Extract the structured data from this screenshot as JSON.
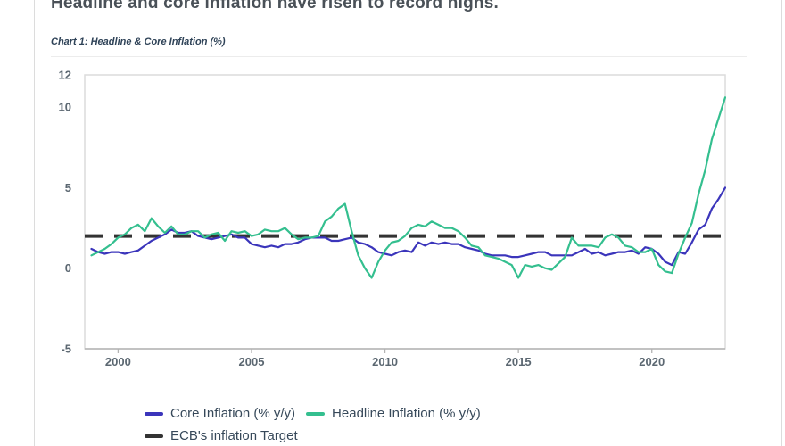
{
  "page": {
    "title": "Headline and core inflation have risen to record highs."
  },
  "chart": {
    "caption": "Chart 1: Headline & Core Inflation (%)"
  },
  "colors": {
    "core_line": "#3b35bb",
    "headline_line": "#34bf8f",
    "target_line": "#333333",
    "axis_label": "#5b6771",
    "plot_border": "#dcdcdc",
    "axis_line": "#b3b3b3"
  },
  "chart_data": {
    "type": "line",
    "title": "Chart 1: Headline & Core Inflation (%)",
    "xlabel": "",
    "ylabel": "",
    "x_start": 1999.0,
    "x_step_years": 0.25,
    "xlim": [
      1998.75,
      2022.75
    ],
    "ylim": [
      -5,
      12
    ],
    "x_ticks": [
      2000,
      2005,
      2010,
      2015,
      2020
    ],
    "y_ticks": [
      12,
      10,
      5,
      0,
      -5
    ],
    "grid": false,
    "legend_position": "bottom-left",
    "target_line": {
      "value": 2,
      "color": "#333333",
      "style": "dashed",
      "label": "ECB's inflation Target"
    },
    "series": [
      {
        "name": "Core Inflation (% y/y)",
        "color": "#3b35bb",
        "values": [
          1.2,
          1.0,
          0.9,
          1.0,
          1.0,
          0.9,
          1.0,
          1.1,
          1.4,
          1.7,
          1.9,
          2.1,
          2.4,
          2.2,
          2.2,
          2.3,
          2.0,
          1.9,
          1.8,
          1.9,
          2.0,
          2.1,
          1.9,
          1.9,
          1.5,
          1.4,
          1.3,
          1.4,
          1.3,
          1.5,
          1.5,
          1.6,
          1.8,
          1.9,
          1.9,
          1.9,
          1.7,
          1.7,
          1.8,
          1.9,
          1.6,
          1.5,
          1.3,
          1.0,
          0.9,
          0.8,
          1.0,
          1.1,
          1.0,
          1.6,
          1.4,
          1.6,
          1.5,
          1.6,
          1.5,
          1.5,
          1.3,
          1.2,
          1.1,
          0.9,
          0.8,
          0.8,
          0.8,
          0.7,
          0.7,
          0.8,
          0.9,
          1.0,
          1.0,
          0.8,
          0.8,
          0.8,
          0.8,
          1.0,
          1.2,
          0.9,
          1.0,
          0.8,
          0.9,
          1.0,
          1.0,
          1.1,
          0.9,
          1.3,
          1.2,
          0.9,
          0.4,
          0.2,
          1.0,
          0.9,
          1.6,
          2.4,
          2.7,
          3.7,
          4.3,
          5.0
        ]
      },
      {
        "name": "Headline Inflation (% y/y)",
        "color": "#34bf8f",
        "values": [
          0.8,
          1.0,
          1.2,
          1.5,
          1.9,
          2.1,
          2.5,
          2.7,
          2.3,
          3.1,
          2.6,
          2.2,
          2.6,
          2.1,
          2.1,
          2.3,
          2.3,
          1.9,
          2.1,
          2.2,
          1.7,
          2.3,
          2.2,
          2.3,
          2.0,
          2.1,
          2.4,
          2.3,
          2.3,
          2.5,
          2.1,
          1.8,
          1.9,
          1.9,
          2.0,
          2.9,
          3.2,
          3.7,
          4.0,
          2.3,
          0.8,
          0.0,
          -0.6,
          0.4,
          1.1,
          1.6,
          1.7,
          2.0,
          2.5,
          2.7,
          2.6,
          2.9,
          2.7,
          2.5,
          2.5,
          2.3,
          1.9,
          1.4,
          1.3,
          0.8,
          0.7,
          0.6,
          0.4,
          0.2,
          -0.6,
          0.2,
          0.1,
          0.2,
          0.0,
          -0.1,
          0.3,
          0.7,
          1.9,
          1.4,
          1.4,
          1.4,
          1.3,
          1.9,
          2.1,
          1.9,
          1.4,
          1.3,
          1.0,
          1.0,
          1.2,
          0.2,
          -0.2,
          -0.3,
          0.9,
          1.9,
          2.8,
          4.6,
          6.1,
          8.0,
          9.3,
          10.6
        ]
      }
    ],
    "legend": [
      {
        "label": "Core Inflation (% y/y)",
        "color": "#3b35bb"
      },
      {
        "label": "Headline Inflation (% y/y)",
        "color": "#34bf8f"
      },
      {
        "label": "ECB's inflation Target",
        "color": "#333333"
      }
    ]
  }
}
